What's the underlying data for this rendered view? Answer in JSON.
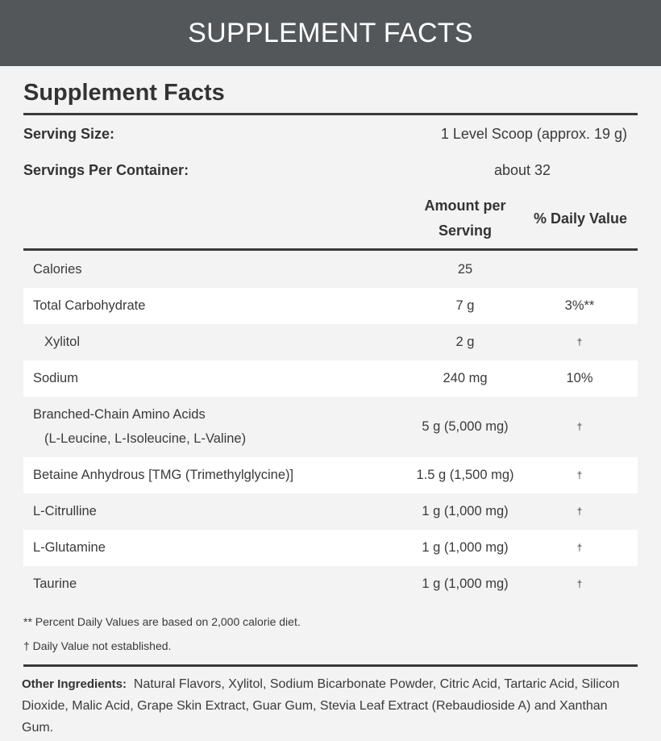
{
  "header": {
    "title": "SUPPLEMENT FACTS"
  },
  "facts": {
    "title": "Supplement Facts",
    "serving_size_label": "Serving Size:",
    "serving_size_value": "1 Level Scoop (approx. 19 g)",
    "servings_label": "Servings Per Container:",
    "servings_value": "about 32",
    "col_amount_1": "Amount per",
    "col_amount_2": "Serving",
    "col_dv": "% Daily Value",
    "rows": [
      {
        "name": "Calories",
        "amount": "25",
        "dv": ""
      },
      {
        "name": "Total Carbohydrate",
        "amount": "7 g",
        "dv": "3%**"
      },
      {
        "name": "Xylitol",
        "amount": "2 g",
        "dv": "†"
      },
      {
        "name": "Sodium",
        "amount": "240 mg",
        "dv": "10%"
      },
      {
        "name": "Branched-Chain Amino Acids",
        "sub": "(L-Leucine, L-Isoleucine, L-Valine)",
        "amount": "5 g (5,000 mg)",
        "dv": "†"
      },
      {
        "name": "Betaine Anhydrous [TMG (Trimethylglycine)]",
        "amount": "1.5 g (1,500 mg)",
        "dv": "†"
      },
      {
        "name": "L-Citrulline",
        "amount": "1 g (1,000 mg)",
        "dv": "†"
      },
      {
        "name": "L-Glutamine",
        "amount": "1 g (1,000 mg)",
        "dv": "†"
      },
      {
        "name": "Taurine",
        "amount": "1 g (1,000 mg)",
        "dv": "†"
      }
    ],
    "footnote_1": "** Percent Daily Values are based on 2,000 calorie diet.",
    "footnote_2": "† Daily Value not established.",
    "other_label": "Other Ingredients:",
    "other_text": "Natural Flavors, Xylitol, Sodium Bicarbonate Powder, Citric Acid, Tartaric Acid, Silicon Dioxide, Malic Acid, Grape Skin Extract, Guar Gum, Stevia Leaf Extract (Rebaudioside A) and Xanthan Gum."
  }
}
